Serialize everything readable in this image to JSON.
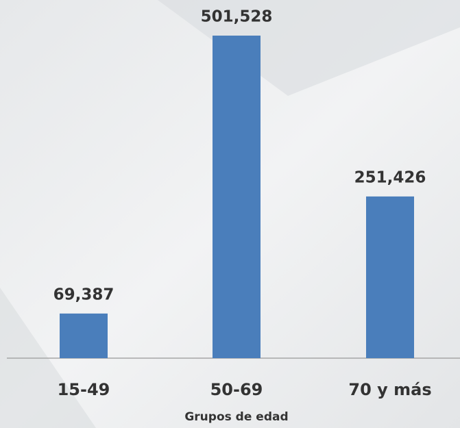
{
  "chart_data": {
    "type": "bar",
    "x_label": "Grupos de edad",
    "categories": [
      "15-49",
      "50-69",
      "70 y más"
    ],
    "values": [
      69387,
      501528,
      251426
    ],
    "value_labels": [
      "69,387",
      "501,528",
      "251,426"
    ],
    "color": "#4a7ebb"
  }
}
